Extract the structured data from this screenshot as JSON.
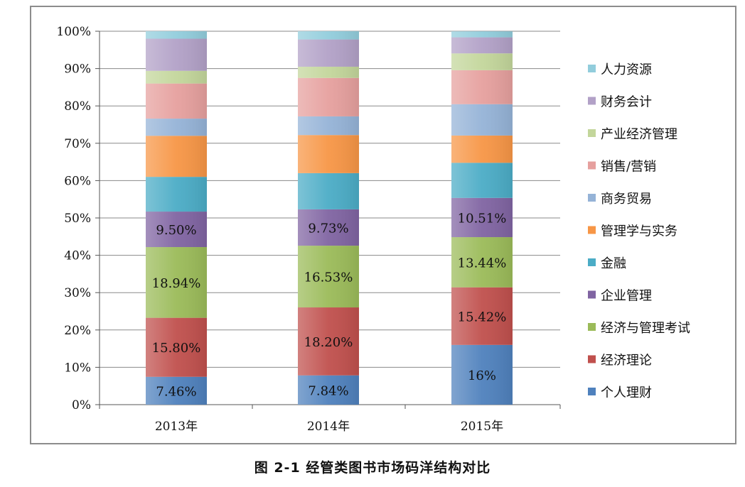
{
  "caption": "图 2-1  经管类图书市场码洋结构对比",
  "chart_data": {
    "type": "bar",
    "stacked": true,
    "stack_mode": "percent",
    "categories": [
      "2013年",
      "2014年",
      "2015年"
    ],
    "ylim": [
      0,
      100
    ],
    "yticks": [
      "0%",
      "10%",
      "20%",
      "30%",
      "40%",
      "50%",
      "60%",
      "70%",
      "80%",
      "90%",
      "100%"
    ],
    "grid": true,
    "legend_position": "right",
    "series": [
      {
        "name": "个人理财",
        "color": "#4f81bd",
        "values": [
          7.46,
          7.84,
          16
        ],
        "labels": [
          "7.46%",
          "7.84%",
          "16%"
        ]
      },
      {
        "name": "经济理论",
        "color": "#c0504d",
        "values": [
          15.8,
          18.2,
          15.42
        ],
        "labels": [
          "15.80%",
          "18.20%",
          "15.42%"
        ]
      },
      {
        "name": "经济与管理考试",
        "color": "#9bbb59",
        "values": [
          18.94,
          16.53,
          13.44
        ],
        "labels": [
          "18.94%",
          "16.53%",
          "13.44%"
        ]
      },
      {
        "name": "企业管理",
        "color": "#8064a2",
        "values": [
          9.5,
          9.73,
          10.51
        ],
        "labels": [
          "9.50%",
          "9.73%",
          "10.51%"
        ]
      },
      {
        "name": "金融",
        "color": "#4bacc6",
        "values": [
          9.3,
          9.7,
          9.4
        ],
        "labels": [
          "",
          "",
          ""
        ]
      },
      {
        "name": "管理学与实务",
        "color": "#f79646",
        "values": [
          11.0,
          10.2,
          7.3
        ],
        "labels": [
          "",
          "",
          ""
        ]
      },
      {
        "name": "商务贸易",
        "color": "#95b3d7",
        "values": [
          4.6,
          5.0,
          8.4
        ],
        "labels": [
          "",
          "",
          ""
        ]
      },
      {
        "name": "销售/营销",
        "color": "#e6a09e",
        "values": [
          9.4,
          10.3,
          9.1
        ],
        "labels": [
          "",
          "",
          ""
        ]
      },
      {
        "name": "产业经济管理",
        "color": "#c3d69b",
        "values": [
          3.4,
          3.0,
          4.5
        ],
        "labels": [
          "",
          "",
          ""
        ]
      },
      {
        "name": "财务会计",
        "color": "#b2a1c7",
        "values": [
          8.6,
          7.3,
          4.3
        ],
        "labels": [
          "",
          "",
          ""
        ]
      },
      {
        "name": "人力资源",
        "color": "#92cddc",
        "values": [
          2.0,
          2.2,
          1.6
        ],
        "labels": [
          "",
          "",
          ""
        ]
      }
    ],
    "legend_order": [
      "人力资源",
      "财务会计",
      "产业经济管理",
      "销售/营销",
      "商务贸易",
      "管理学与实务",
      "金融",
      "企业管理",
      "经济与管理考试",
      "经济理论",
      "个人理财"
    ]
  }
}
